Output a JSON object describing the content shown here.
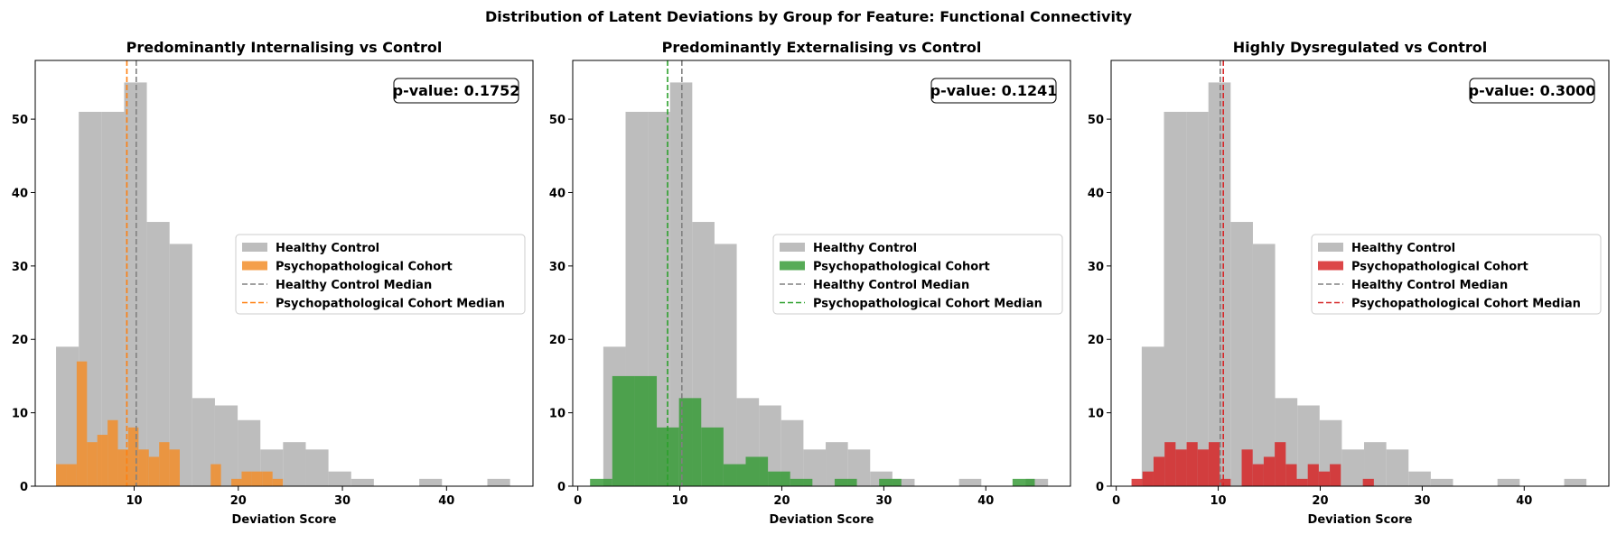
{
  "chart_data": {
    "suptitle": "Distribution of Latent Deviations by Group for Feature: Functional Connectivity",
    "legend_labels": {
      "control_hist": "Healthy Control",
      "cohort_hist": "Psychopathological Cohort",
      "control_median": "Healthy Control Median",
      "cohort_median": "Psychopathological Cohort Median"
    },
    "control_color": "#bdbdbd",
    "control_median_color": "#808080",
    "control": {
      "bin_edges": [
        2.5,
        4.68,
        6.86,
        9.04,
        11.22,
        13.4,
        15.58,
        17.76,
        19.94,
        22.12,
        24.3,
        26.48,
        28.66,
        30.84,
        33.02,
        35.2,
        37.38,
        39.56,
        41.74,
        43.92,
        46.1
      ],
      "counts": [
        19,
        51,
        51,
        55,
        36,
        33,
        12,
        11,
        9,
        5,
        6,
        5,
        2,
        1,
        0,
        0,
        1,
        0,
        0,
        1
      ],
      "median": 10.2
    },
    "panels": [
      {
        "title": "Predominantly Internalising vs Control",
        "p_value_text": "p-value: 0.1752",
        "color": "#f28e2b",
        "median_color": "#ff7f0e",
        "xlim": [
          0.5,
          48.3
        ],
        "ylim": [
          0,
          58
        ],
        "xticks": [
          10,
          20,
          30,
          40
        ],
        "yticks": [
          0,
          10,
          20,
          30,
          40,
          50
        ],
        "xlabel": "Deviation Score",
        "cohort": {
          "bin_edges": [
            2.5,
            3.49,
            4.48,
            5.47,
            6.46,
            7.45,
            8.44,
            9.43,
            10.42,
            11.41,
            12.4,
            13.39,
            14.38,
            15.37,
            16.36,
            17.35,
            18.34,
            19.33,
            20.32,
            21.31,
            22.3,
            23.29,
            24.28
          ],
          "counts": [
            3,
            3,
            17,
            6,
            7,
            9,
            5,
            8,
            5,
            4,
            6,
            5,
            0,
            0,
            0,
            3,
            0,
            1,
            2,
            2,
            2,
            1
          ],
          "median": 9.3
        }
      },
      {
        "title": "Predominantly Externalising vs Control",
        "p_value_text": "p-value: 0.1241",
        "color": "#3a9c3a",
        "median_color": "#2ca02c",
        "xlim": [
          -0.5,
          48.3
        ],
        "ylim": [
          0,
          58
        ],
        "xticks": [
          0,
          10,
          20,
          30,
          40
        ],
        "yticks": [
          0,
          10,
          20,
          30,
          40,
          50
        ],
        "xlabel": "Deviation Score",
        "cohort": {
          "bin_edges": [
            1.2,
            3.38,
            5.56,
            7.74,
            9.92,
            12.1,
            14.28,
            16.46,
            18.64,
            20.82,
            23.0,
            25.18,
            27.36,
            29.54,
            31.72,
            33.9,
            36.08,
            38.26,
            40.44,
            42.62,
            44.8
          ],
          "counts": [
            1,
            15,
            15,
            8,
            12,
            8,
            3,
            4,
            2,
            1,
            0,
            1,
            0,
            1,
            0,
            0,
            0,
            0,
            0,
            1
          ],
          "median": 8.8
        }
      },
      {
        "title": "Highly Dysregulated vs Control",
        "p_value_text": "p-value: 0.3000",
        "color": "#d62728",
        "median_color": "#d62728",
        "xlim": [
          -0.5,
          48.3
        ],
        "ylim": [
          0,
          58
        ],
        "xticks": [
          0,
          10,
          20,
          30,
          40
        ],
        "yticks": [
          0,
          10,
          20,
          30,
          40,
          50
        ],
        "xlabel": "Deviation Score",
        "cohort": {
          "bin_edges": [
            1.5,
            2.58,
            3.66,
            4.74,
            5.82,
            6.9,
            7.98,
            9.06,
            10.14,
            11.22,
            12.3,
            13.38,
            14.46,
            15.54,
            16.62,
            17.7,
            18.78,
            19.86,
            20.94,
            22.02,
            23.1,
            24.18,
            25.26
          ],
          "counts": [
            1,
            2,
            4,
            6,
            5,
            6,
            5,
            6,
            1,
            0,
            5,
            3,
            4,
            6,
            3,
            1,
            3,
            2,
            3,
            0,
            0,
            1
          ],
          "median": 10.5
        }
      }
    ]
  }
}
